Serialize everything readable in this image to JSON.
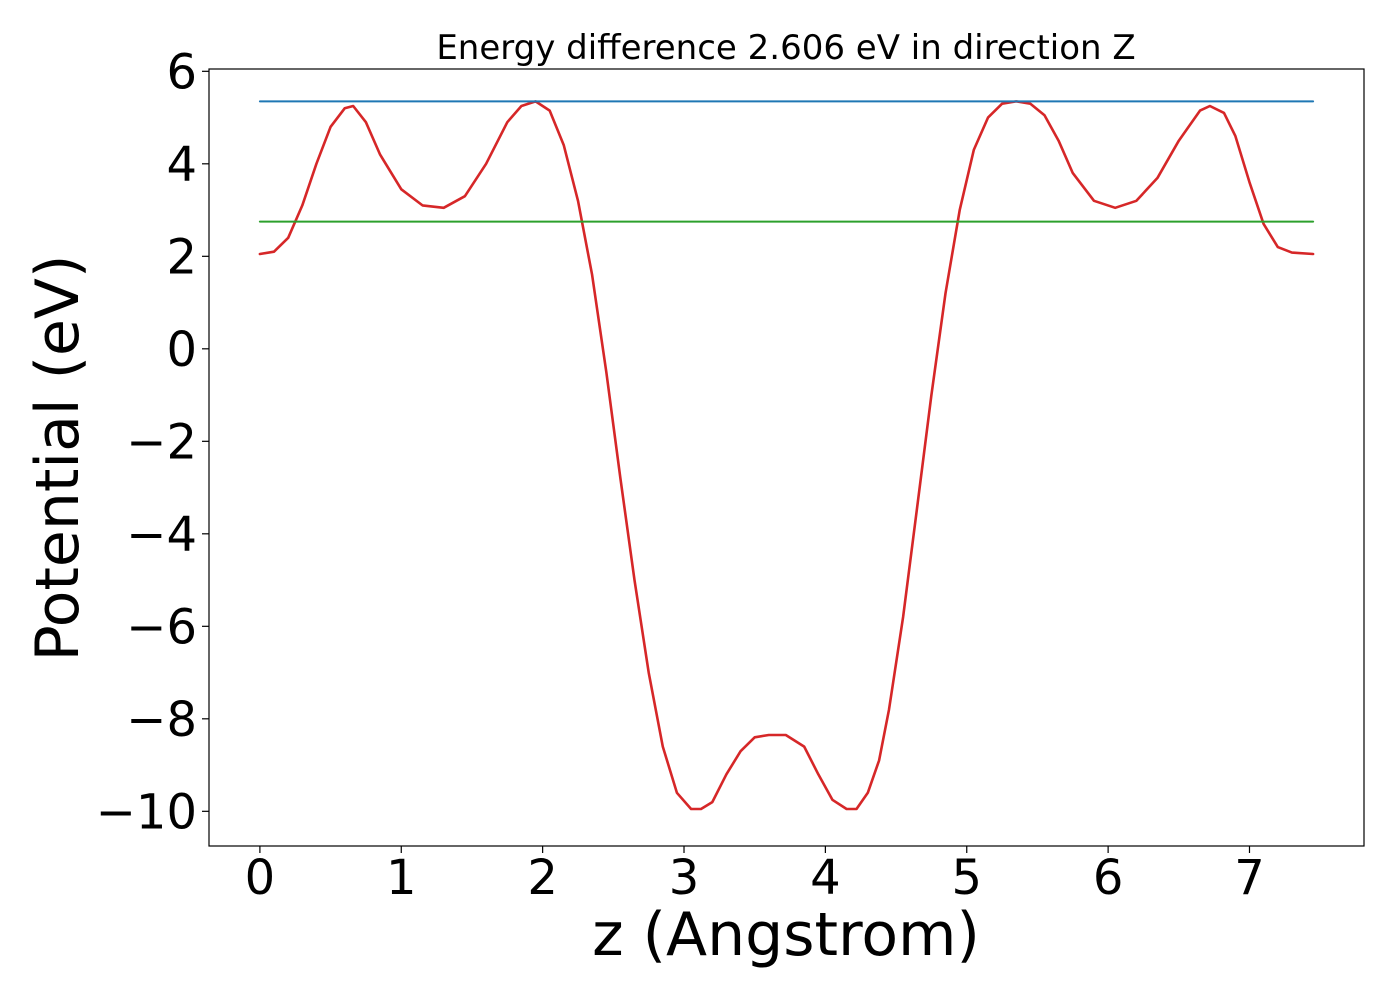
{
  "chart_data": {
    "type": "line",
    "title": "Energy difference 2.606 eV in direction Z",
    "xlabel": "z (Angstrom)",
    "ylabel": "Potential (eV)",
    "xlim": [
      -0.36,
      7.81
    ],
    "ylim": [
      -10.75,
      6.05
    ],
    "x_ticks": [
      0,
      1,
      2,
      3,
      4,
      5,
      6,
      7
    ],
    "y_ticks": [
      6,
      4,
      2,
      0,
      -2,
      -4,
      -6,
      -8,
      -10
    ],
    "x_tick_labels": [
      "0",
      "1",
      "2",
      "3",
      "4",
      "5",
      "6",
      "7"
    ],
    "y_tick_labels": [
      "6",
      "4",
      "2",
      "0",
      "−2",
      "−4",
      "−6",
      "−8",
      "−10"
    ],
    "grid": false,
    "legend": "none",
    "series": [
      {
        "color": "#d62728",
        "x": [
          0,
          0.1,
          0.2,
          0.3,
          0.4,
          0.5,
          0.6,
          0.66,
          0.75,
          0.85,
          1.0,
          1.15,
          1.3,
          1.45,
          1.6,
          1.75,
          1.85,
          1.95,
          2.05,
          2.15,
          2.25,
          2.35,
          2.45,
          2.55,
          2.65,
          2.75,
          2.85,
          2.95,
          3.05,
          3.12,
          3.2,
          3.3,
          3.4,
          3.5,
          3.6,
          3.72,
          3.85,
          3.95,
          4.05,
          4.15,
          4.22,
          4.3,
          4.38,
          4.45,
          4.55,
          4.65,
          4.75,
          4.85,
          4.95,
          5.05,
          5.15,
          5.25,
          5.35,
          5.45,
          5.55,
          5.65,
          5.75,
          5.9,
          6.05,
          6.2,
          6.35,
          6.5,
          6.65,
          6.72,
          6.82,
          6.9,
          7.0,
          7.1,
          7.2,
          7.3,
          7.45
        ],
        "y": [
          2.05,
          2.1,
          2.4,
          3.1,
          4.0,
          4.8,
          5.2,
          5.25,
          4.9,
          4.2,
          3.45,
          3.1,
          3.05,
          3.3,
          4.0,
          4.9,
          5.25,
          5.35,
          5.15,
          4.4,
          3.2,
          1.6,
          -0.5,
          -2.8,
          -5.0,
          -7.0,
          -8.6,
          -9.6,
          -9.95,
          -9.95,
          -9.8,
          -9.2,
          -8.7,
          -8.4,
          -8.35,
          -8.35,
          -8.6,
          -9.2,
          -9.75,
          -9.95,
          -9.95,
          -9.6,
          -8.9,
          -7.8,
          -5.8,
          -3.4,
          -1.0,
          1.2,
          3.0,
          4.3,
          5.0,
          5.3,
          5.35,
          5.3,
          5.05,
          4.5,
          3.8,
          3.2,
          3.05,
          3.2,
          3.7,
          4.5,
          5.15,
          5.25,
          5.1,
          4.6,
          3.6,
          2.7,
          2.2,
          2.08,
          2.05
        ]
      },
      {
        "color": "#1f77b4",
        "x": [
          0,
          7.45
        ],
        "y": [
          5.35,
          5.35
        ]
      },
      {
        "color": "#2ca02c",
        "x": [
          0,
          7.45
        ],
        "y": [
          2.75,
          2.75
        ]
      }
    ]
  }
}
